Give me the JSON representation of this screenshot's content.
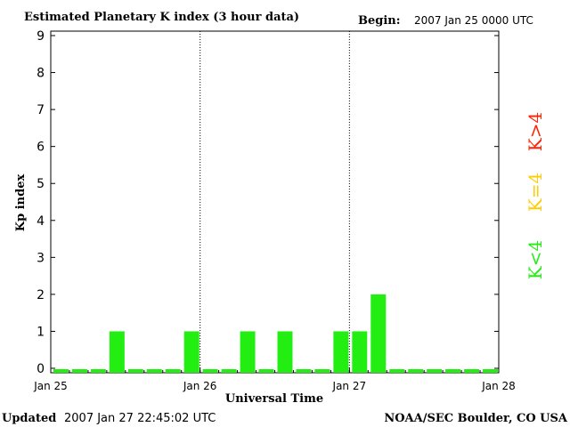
{
  "header": {
    "title": "Estimated Planetary K index (3 hour data)",
    "begin_label": "Begin:",
    "begin_value": "2007 Jan 25 0000 UTC"
  },
  "footer": {
    "updated_label": "Updated",
    "updated_value": "2007 Jan 27 22:45:02 UTC",
    "source": "NOAA/SEC Boulder, CO USA"
  },
  "legend": {
    "items": [
      {
        "label": "K>4",
        "color": "#ff2200"
      },
      {
        "label": "K=4",
        "color": "#ffcc00"
      },
      {
        "label": "K<4",
        "color": "#22ee11"
      }
    ]
  },
  "chart_data": {
    "type": "bar",
    "title": "Estimated Planetary K index (3 hour data)",
    "xlabel": "Universal Time",
    "ylabel": "Kp index",
    "ylim": [
      0,
      9
    ],
    "yticks": [
      "0",
      "1",
      "2",
      "3",
      "4",
      "5",
      "6",
      "7",
      "8",
      "9"
    ],
    "xticks": [
      "Jan 25",
      "Jan 26",
      "Jan 27",
      "Jan 28"
    ],
    "bar_color": "#22ee11",
    "day_separators": [
      "Jan 26",
      "Jan 27"
    ],
    "values": [
      0,
      0,
      0,
      1,
      0,
      0,
      0,
      1,
      0,
      0,
      1,
      0,
      1,
      0,
      0,
      1,
      1,
      2,
      0,
      0,
      0,
      0,
      0,
      0
    ]
  }
}
